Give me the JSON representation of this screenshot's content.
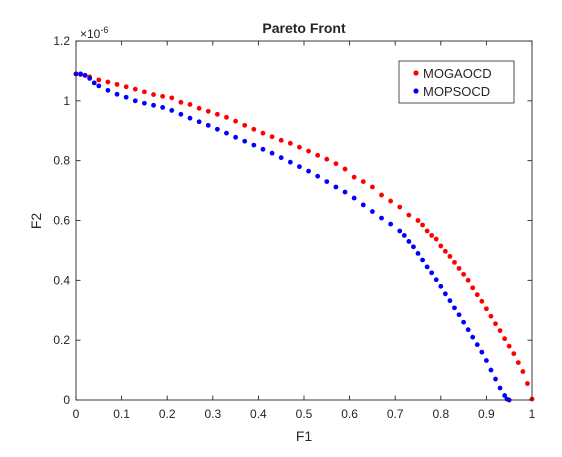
{
  "chart_data": {
    "type": "scatter",
    "title": "Pareto Front",
    "xlabel": "F1",
    "ylabel": "F2",
    "xlim": [
      0,
      1
    ],
    "ylim": [
      0,
      1.2
    ],
    "y_exponent_label": "×10",
    "y_exponent_power": "-6",
    "x_ticks": [
      0,
      0.1,
      0.2,
      0.3,
      0.4,
      0.5,
      0.6,
      0.7,
      0.8,
      0.9,
      1
    ],
    "x_tick_labels": [
      "0",
      "0.1",
      "0.2",
      "0.3",
      "0.4",
      "0.5",
      "0.6",
      "0.7",
      "0.8",
      "0.9",
      "1"
    ],
    "y_ticks": [
      0,
      0.2,
      0.4,
      0.6,
      0.8,
      1,
      1.2
    ],
    "y_tick_labels": [
      "0",
      "0.2",
      "0.4",
      "0.6",
      "0.8",
      "1",
      "1.2"
    ],
    "grid": false,
    "legend_position": "top-right",
    "series": [
      {
        "name": "MOGAOCD",
        "color": "#ff0000",
        "x": [
          0.0,
          0.01,
          0.02,
          0.03,
          0.05,
          0.07,
          0.09,
          0.11,
          0.13,
          0.15,
          0.17,
          0.19,
          0.21,
          0.23,
          0.25,
          0.27,
          0.29,
          0.31,
          0.33,
          0.35,
          0.37,
          0.39,
          0.41,
          0.43,
          0.45,
          0.47,
          0.49,
          0.51,
          0.53,
          0.55,
          0.57,
          0.59,
          0.61,
          0.63,
          0.65,
          0.67,
          0.69,
          0.71,
          0.73,
          0.75,
          0.76,
          0.77,
          0.78,
          0.79,
          0.8,
          0.81,
          0.82,
          0.83,
          0.84,
          0.85,
          0.86,
          0.87,
          0.88,
          0.89,
          0.9,
          0.91,
          0.92,
          0.93,
          0.94,
          0.95,
          0.96,
          0.97,
          0.98,
          0.99,
          1.0
        ],
        "y": [
          1.09,
          1.088,
          1.085,
          1.08,
          1.07,
          1.063,
          1.055,
          1.047,
          1.039,
          1.03,
          1.021,
          1.015,
          1.01,
          0.995,
          0.988,
          0.975,
          0.965,
          0.955,
          0.945,
          0.932,
          0.918,
          0.905,
          0.892,
          0.88,
          0.868,
          0.858,
          0.845,
          0.832,
          0.818,
          0.805,
          0.79,
          0.772,
          0.745,
          0.73,
          0.712,
          0.685,
          0.665,
          0.645,
          0.618,
          0.6,
          0.585,
          0.565,
          0.55,
          0.538,
          0.515,
          0.497,
          0.48,
          0.46,
          0.44,
          0.42,
          0.4,
          0.375,
          0.352,
          0.33,
          0.305,
          0.28,
          0.255,
          0.232,
          0.205,
          0.18,
          0.155,
          0.125,
          0.095,
          0.055,
          0.003
        ]
      },
      {
        "name": "MOPSOCD",
        "color": "#0000ff",
        "x": [
          0.0,
          0.01,
          0.02,
          0.03,
          0.04,
          0.05,
          0.07,
          0.09,
          0.11,
          0.13,
          0.15,
          0.17,
          0.19,
          0.21,
          0.23,
          0.25,
          0.27,
          0.29,
          0.31,
          0.33,
          0.35,
          0.37,
          0.39,
          0.41,
          0.43,
          0.45,
          0.47,
          0.49,
          0.51,
          0.53,
          0.55,
          0.57,
          0.59,
          0.61,
          0.63,
          0.65,
          0.67,
          0.69,
          0.71,
          0.72,
          0.73,
          0.74,
          0.75,
          0.76,
          0.77,
          0.78,
          0.79,
          0.8,
          0.81,
          0.82,
          0.83,
          0.84,
          0.85,
          0.86,
          0.87,
          0.88,
          0.89,
          0.9,
          0.91,
          0.92,
          0.93,
          0.94,
          0.945,
          0.95
        ],
        "y": [
          1.09,
          1.09,
          1.085,
          1.075,
          1.06,
          1.05,
          1.035,
          1.022,
          1.012,
          1.0,
          0.992,
          0.985,
          0.978,
          0.968,
          0.955,
          0.942,
          0.93,
          0.918,
          0.905,
          0.892,
          0.878,
          0.865,
          0.852,
          0.838,
          0.825,
          0.81,
          0.795,
          0.78,
          0.765,
          0.748,
          0.73,
          0.712,
          0.695,
          0.675,
          0.652,
          0.63,
          0.608,
          0.588,
          0.565,
          0.55,
          0.53,
          0.512,
          0.49,
          0.468,
          0.445,
          0.425,
          0.402,
          0.38,
          0.355,
          0.332,
          0.308,
          0.285,
          0.26,
          0.235,
          0.21,
          0.185,
          0.16,
          0.132,
          0.1,
          0.07,
          0.04,
          0.015,
          0.003,
          0.0
        ]
      }
    ]
  }
}
